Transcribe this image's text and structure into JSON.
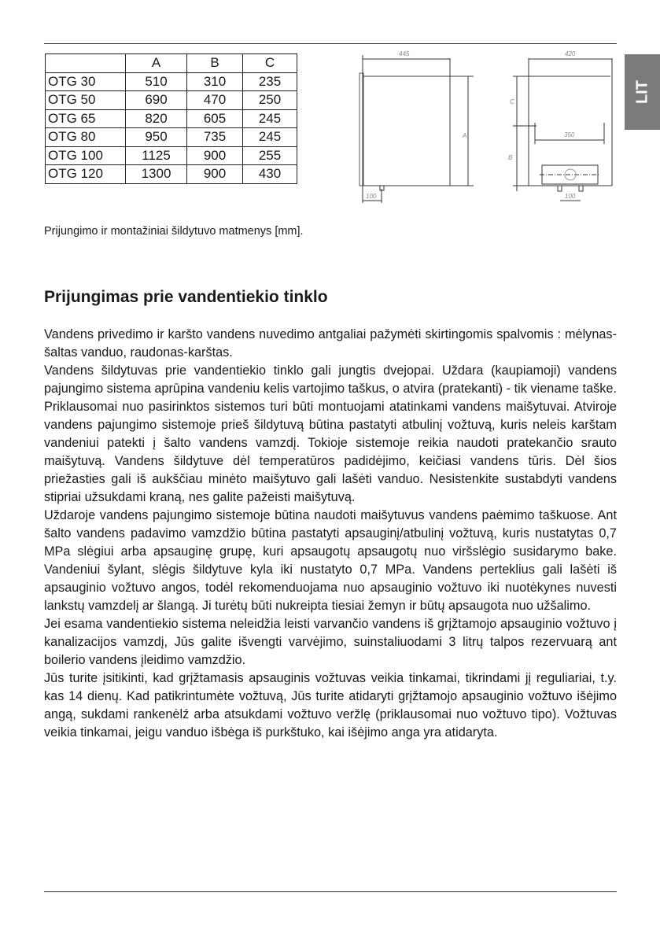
{
  "side_tab": {
    "label": "LIT",
    "color": "#7b7b7b"
  },
  "table": {
    "headers": [
      "",
      "A",
      "B",
      "C"
    ],
    "rows": [
      [
        "OTG 30",
        "510",
        "310",
        "235"
      ],
      [
        "OTG 50",
        "690",
        "470",
        "250"
      ],
      [
        "OTG 65",
        "820",
        "605",
        "245"
      ],
      [
        "OTG 80",
        "950",
        "735",
        "245"
      ],
      [
        "OTG 100",
        "1125",
        "900",
        "255"
      ],
      [
        "OTG 120",
        "1300",
        "900",
        "430"
      ]
    ]
  },
  "diagram": {
    "side_width": "445",
    "side_height": "A",
    "side_offset": "100",
    "front_width": "420",
    "front_c": "C",
    "front_b": "B",
    "front_mount": "350",
    "front_pipes": "100"
  },
  "caption": "Prijungimo ir montažiniai šildytuvo matmenys [mm].",
  "section": {
    "title": "Prijungimas prie vandentiekio tinklo",
    "paragraphs": [
      "Vandens privedimo ir karšto vandens nuvedimo antgaliai pažymėti skirtingomis spalvomis : mėlynas-šaltas vanduo, raudonas-karštas.",
      "Vandens šildytuvas prie vandentiekio tinklo gali jungtis dvejopai. Uždara (kaupiamoji) vandens pajungimo sistema aprūpina vandeniu kelis vartojimo taškus, o atvira (pratekanti) - tik viename taške. Priklausomai nuo pasirinktos sistemos turi būti montuojami atatinkami vandens maišytuvai. Atviroje vandens pajungimo sistemoje prieš šildytuvą būtina pastatyti atbulinį vožtuvą, kuris neleis karštam vandeniui patekti į šalto vandens vamzdį. Tokioje sistemoje reikia naudoti pratekančio srauto maišytuvą. Vandens šildytuve dėl temperatūros padidėjimo, keičiasi vandens tūris. Dėl šios priežasties gali iš aukščiau minėto maišytuvo gali lašėti vanduo. Nesistenkite sustabdyti vandens stipriai užsukdami kraną, nes galite pažeisti maišytuvą.",
      "Uždaroje vandens pajungimo sistemoje būtina naudoti maišytuvus vandens paėmimo taškuose. Ant šalto vandens padavimo vamzdžio būtina pastatyti apsauginį/atbulinį vožtuvą, kuris nustatytas 0,7 MPa slėgiui arba apsauginę grupę, kuri apsaugotų apsaugotų nuo viršslėgio susidarymo bake. Vandeniui šylant, slėgis šildytuve kyla iki nustatyto 0,7 MPa. Vandens perteklius gali lašėti iš apsauginio vožtuvo angos, todėl rekomenduojama nuo apsauginio vožtuvo iki nuotėkynes nuvesti lankstų vamzdelį ar šlangą. Ji turėtų būti nukreipta tiesiai žemyn ir būtų apsaugota nuo užšalimo.",
      "Jei esama vandentiekio sistema neleidžia leisti varvančio vandens iš grįžtamojo apsauginio vožtuvo į kanalizacijos vamzdį, Jūs galite išvengti varvėjimo, suinstaliuodami 3 litrų talpos rezervuarą ant boilerio vandens įleidimo vamzdžio.",
      "Jūs turite įsitikinti, kad grįžtamasis apsauginis vožtuvas veikia tinkamai, tikrindami jį reguliariai, t.y. kas 14 dienų. Kad patikrintumėte vožtuvą, Jūs turite atidaryti grįžtamojo apsauginio vožtuvo išėjimo angą, sukdami rankenėlź arba atsukdami vožtuvo veržlę (priklausomai nuo vožtuvo tipo). Vožtuvas veikia tinkamai, jeigu vanduo išbėga iš purkštuko, kai išėjimo anga yra atidaryta."
    ]
  }
}
